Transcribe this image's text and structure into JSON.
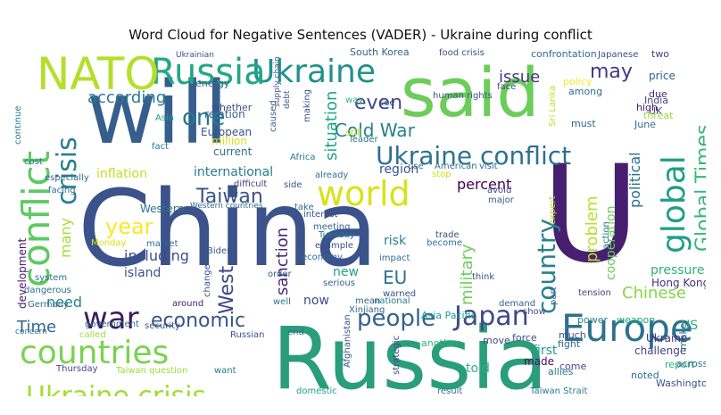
{
  "chart_data": {
    "type": "wordcloud",
    "title": "Word Cloud for Negative Sentences (VADER) - Ukraine during conflict",
    "palette": [
      "#440154",
      "#46327e",
      "#365c8d",
      "#277f8e",
      "#1fa187",
      "#4ac16d",
      "#a0da39",
      "#fde725"
    ],
    "words": [
      {
        "text": "China",
        "color": "#3b528b"
      },
      {
        "text": "Russia",
        "color": "#2a9d7a"
      },
      {
        "text": "will",
        "color": "#355e8d"
      },
      {
        "text": "U",
        "color": "#481f70"
      },
      {
        "text": "said",
        "color": "#6ccd5a"
      },
      {
        "text": "Ukraine",
        "color": "#21918c"
      },
      {
        "text": "Russia",
        "color": "#22a884"
      },
      {
        "text": "NATO",
        "color": "#b5de2b"
      },
      {
        "text": "Europe",
        "color": "#2d718e"
      },
      {
        "text": "countries",
        "color": "#7ad151"
      },
      {
        "text": "conflict",
        "color": "#5ec962"
      },
      {
        "text": "world",
        "color": "#d8e219"
      },
      {
        "text": "Ukraine conflict",
        "color": "#2c728e"
      },
      {
        "text": "Ukraine crisis",
        "color": "#a5db36"
      },
      {
        "text": "war",
        "color": "#3e1a5a"
      },
      {
        "text": "Japan",
        "color": "#3e4a89"
      },
      {
        "text": "people",
        "color": "#33638d"
      },
      {
        "text": "economic",
        "color": "#3a548c"
      },
      {
        "text": "global",
        "color": "#1f9e89"
      },
      {
        "text": "crisis",
        "color": "#277f8e"
      },
      {
        "text": "country",
        "color": "#26828e"
      },
      {
        "text": "one",
        "color": "#2a788e"
      },
      {
        "text": "Taiwan",
        "color": "#3b518b"
      },
      {
        "text": "year",
        "color": "#fde725"
      },
      {
        "text": "Cold War",
        "color": "#27808e"
      },
      {
        "text": "even",
        "color": "#3e4989"
      },
      {
        "text": "may",
        "color": "#443983"
      },
      {
        "text": "Global Times",
        "color": "#35b779"
      },
      {
        "text": "West",
        "color": "#404688"
      },
      {
        "text": "according",
        "color": "#2a788e"
      },
      {
        "text": "Time",
        "color": "#31688e"
      },
      {
        "text": "EU",
        "color": "#2c738e"
      },
      {
        "text": "situation",
        "color": "#20a486"
      },
      {
        "text": "problem",
        "color": "#b5de2b"
      },
      {
        "text": "issue",
        "color": "#453781"
      },
      {
        "text": "percent",
        "color": "#440154"
      },
      {
        "text": "military",
        "color": "#6ece58"
      },
      {
        "text": "sanction",
        "color": "#482878"
      },
      {
        "text": "Chinese",
        "color": "#86d549"
      },
      {
        "text": "political",
        "color": "#2e6f8e"
      },
      {
        "text": "many",
        "color": "#a8db34"
      },
      {
        "text": "need",
        "color": "#277f8e"
      },
      {
        "text": "including",
        "color": "#3d4e8a"
      },
      {
        "text": "US",
        "color": "#29af7f"
      },
      {
        "text": "cooperation",
        "color": "#6ccd5a"
      },
      {
        "text": "international",
        "color": "#287c8e"
      },
      {
        "text": "inflation",
        "color": "#c2df23"
      },
      {
        "text": "region",
        "color": "#3a548c"
      },
      {
        "text": "pressure",
        "color": "#2db27d"
      },
      {
        "text": "island",
        "color": "#3b528b"
      },
      {
        "text": "risk",
        "color": "#26828e"
      },
      {
        "text": "Western",
        "color": "#2c738e"
      },
      {
        "text": "told",
        "color": "#2db27d"
      },
      {
        "text": "made",
        "color": "#471063"
      },
      {
        "text": "first",
        "color": "#1fa088"
      },
      {
        "text": "Ukraine",
        "color": "#472d7b"
      },
      {
        "text": "challenge",
        "color": "#423f85"
      },
      {
        "text": "new",
        "color": "#20a386"
      },
      {
        "text": "now",
        "color": "#3e4989"
      },
      {
        "text": "development",
        "color": "#471365"
      },
      {
        "text": "Hong Kong",
        "color": "#46307e"
      },
      {
        "text": "report",
        "color": "#2db27d"
      },
      {
        "text": "European",
        "color": "#3b528b"
      },
      {
        "text": "relation",
        "color": "#32658e"
      },
      {
        "text": "million",
        "color": "#d8e219"
      },
      {
        "text": "current",
        "color": "#2e6e8e"
      },
      {
        "text": "whether",
        "color": "#3d4d8a"
      },
      {
        "text": "energy",
        "color": "#38588c"
      },
      {
        "text": "Ukrainian",
        "color": "#3e4c8a"
      },
      {
        "text": "South Korea",
        "color": "#32658e"
      },
      {
        "text": "food crisis",
        "color": "#3d4e8a"
      },
      {
        "text": "confrontation",
        "color": "#2e6f8e"
      },
      {
        "text": "Japanese",
        "color": "#3e4c8a"
      },
      {
        "text": "two",
        "color": "#3f4788"
      },
      {
        "text": "price",
        "color": "#34608d"
      },
      {
        "text": "policy",
        "color": "#fde725"
      },
      {
        "text": "among",
        "color": "#2d708e"
      },
      {
        "text": "India",
        "color": "#3f4889"
      },
      {
        "text": "UK",
        "color": "#414487"
      },
      {
        "text": "high",
        "color": "#481f70"
      },
      {
        "text": "due",
        "color": "#482475"
      },
      {
        "text": "threat",
        "color": "#a0da39"
      },
      {
        "text": "June",
        "color": "#2d708e"
      },
      {
        "text": "must",
        "color": "#32658e"
      },
      {
        "text": "human rights",
        "color": "#3b528b"
      },
      {
        "text": "face",
        "color": "#3f4889"
      },
      {
        "text": "see",
        "color": "#3e4989"
      },
      {
        "text": "still",
        "color": "#b8de29"
      },
      {
        "text": "leader",
        "color": "#2a788e"
      },
      {
        "text": "caused",
        "color": "#34618d"
      },
      {
        "text": "making",
        "color": "#3b528b"
      },
      {
        "text": "supply chain",
        "color": "#3a548c"
      },
      {
        "text": "debt",
        "color": "#38598c"
      },
      {
        "text": "way",
        "color": "#35b779"
      },
      {
        "text": "Asia",
        "color": "#1f9e89"
      },
      {
        "text": "fact",
        "color": "#287d8e"
      },
      {
        "text": "Africa",
        "color": "#2a788e"
      },
      {
        "text": "difficult",
        "color": "#414487"
      },
      {
        "text": "already",
        "color": "#2b748e"
      },
      {
        "text": "use",
        "color": "#2e6e8e"
      },
      {
        "text": "American",
        "color": "#2e6e8e"
      },
      {
        "text": "visit",
        "color": "#31688e"
      },
      {
        "text": "stop",
        "color": "#d0e11c"
      },
      {
        "text": "avoid",
        "color": "#3e4a89"
      },
      {
        "text": "major",
        "color": "#37598c"
      },
      {
        "text": "side",
        "color": "#3b528b"
      },
      {
        "text": "take",
        "color": "#2e6e8e"
      },
      {
        "text": "interest",
        "color": "#3d4e8a"
      },
      {
        "text": "meeting",
        "color": "#32648e"
      },
      {
        "text": "Tuesday",
        "color": "#2a778e"
      },
      {
        "text": "example",
        "color": "#3c508b"
      },
      {
        "text": "economy",
        "color": "#30698e"
      },
      {
        "text": "trade",
        "color": "#3d4e8a"
      },
      {
        "text": "become",
        "color": "#2d718e"
      },
      {
        "text": "think",
        "color": "#3d4e8a"
      },
      {
        "text": "impact",
        "color": "#2e6f8e"
      },
      {
        "text": "serious",
        "color": "#34608d"
      },
      {
        "text": "order",
        "color": "#33628d"
      },
      {
        "text": "Biden",
        "color": "#3b528b"
      },
      {
        "text": "market",
        "color": "#2e6e8e"
      },
      {
        "text": "Monday",
        "color": "#d8e219"
      },
      {
        "text": "change",
        "color": "#3b528b"
      },
      {
        "text": "around",
        "color": "#482173"
      },
      {
        "text": "well",
        "color": "#2c738e"
      },
      {
        "text": "mean",
        "color": "#32658e"
      },
      {
        "text": "national",
        "color": "#287c8e"
      },
      {
        "text": "warned",
        "color": "#3d4e8a"
      },
      {
        "text": "demand",
        "color": "#34618d"
      },
      {
        "text": "show",
        "color": "#3e4a89"
      },
      {
        "text": "part",
        "color": "#35608d"
      },
      {
        "text": "tension",
        "color": "#3f4788"
      },
      {
        "text": "action",
        "color": "#2a788e"
      },
      {
        "text": "expert",
        "color": "#b5de2b"
      },
      {
        "text": "power",
        "color": "#27808e"
      },
      {
        "text": "weapon",
        "color": "#22a884"
      },
      {
        "text": "much",
        "color": "#3b528b"
      },
      {
        "text": "fight",
        "color": "#32648e"
      },
      {
        "text": "come",
        "color": "#3e4989"
      },
      {
        "text": "allies",
        "color": "#2a788e"
      },
      {
        "text": "noted",
        "color": "#2e6e8e"
      },
      {
        "text": "make",
        "color": "#31688e"
      },
      {
        "text": "across",
        "color": "#2e6f8e"
      },
      {
        "text": "Washington",
        "color": "#3b528b"
      },
      {
        "text": "Asia Pacific",
        "color": "#1fa088"
      },
      {
        "text": "Xinjiang",
        "color": "#32648e"
      },
      {
        "text": "strategic",
        "color": "#3e4989"
      },
      {
        "text": "another",
        "color": "#2db27d"
      },
      {
        "text": "move",
        "color": "#3e4989"
      },
      {
        "text": "force",
        "color": "#3f4889"
      },
      {
        "text": "Afghanistan",
        "color": "#3b528b"
      },
      {
        "text": "end",
        "color": "#2e6e8e"
      },
      {
        "text": "domestic",
        "color": "#1f9e89"
      },
      {
        "text": "result",
        "color": "#2e6e8e"
      },
      {
        "text": "Taiwan Strait",
        "color": "#287d8e"
      },
      {
        "text": "Thursday",
        "color": "#3e4989"
      },
      {
        "text": "Taiwan question",
        "color": "#a0da39"
      },
      {
        "text": "want",
        "color": "#2a788e"
      },
      {
        "text": "security",
        "color": "#3b528b"
      },
      {
        "text": "government",
        "color": "#2e6e8e"
      },
      {
        "text": "Russian",
        "color": "#3b528b"
      },
      {
        "text": "called",
        "color": "#a0da39"
      },
      {
        "text": "concern",
        "color": "#2e6f8e"
      },
      {
        "text": "Germany",
        "color": "#2e6e8e"
      },
      {
        "text": "dangerous",
        "color": "#2e6e8e"
      },
      {
        "text": "system",
        "color": "#2e6e8e"
      },
      {
        "text": "facing",
        "color": "#2e6e8e"
      },
      {
        "text": "especially",
        "color": "#2e6e8e"
      },
      {
        "text": "cost",
        "color": "#2a788e"
      },
      {
        "text": "continue",
        "color": "#2a788e"
      },
      {
        "text": "Sri Lanka",
        "color": "#c2df23"
      },
      {
        "text": "Western countries",
        "color": "#31688e"
      }
    ]
  }
}
